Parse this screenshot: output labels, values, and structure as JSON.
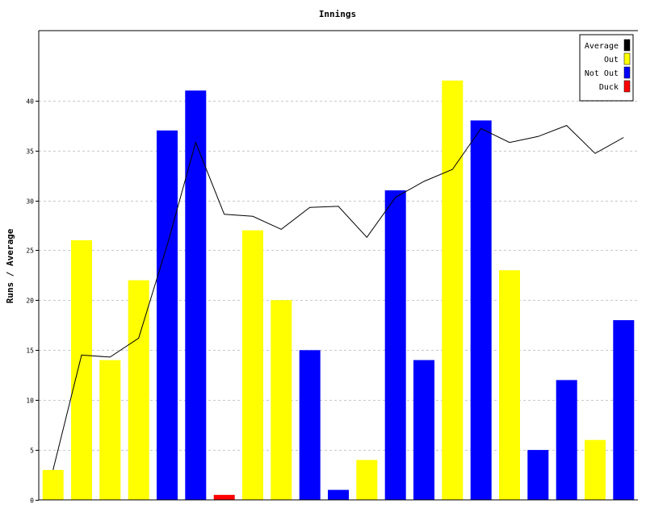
{
  "chart_data": {
    "type": "bar",
    "title": "Innings",
    "xlabel": "",
    "ylabel": "Runs / Average",
    "ylim": [
      0,
      47
    ],
    "yticks": [
      0,
      5,
      10,
      15,
      20,
      25,
      30,
      35,
      40
    ],
    "grid": true,
    "legend_position": "top-right",
    "legend": [
      {
        "label": "Average",
        "color": "#000000"
      },
      {
        "label": "Out",
        "color": "#ffff00"
      },
      {
        "label": "Not Out",
        "color": "#0000ff"
      },
      {
        "label": "Duck",
        "color": "#ff0000"
      }
    ],
    "bars": [
      {
        "value": 3,
        "status": "Out"
      },
      {
        "value": 26,
        "status": "Out"
      },
      {
        "value": 14,
        "status": "Out"
      },
      {
        "value": 22,
        "status": "Out"
      },
      {
        "value": 37,
        "status": "Not Out"
      },
      {
        "value": 41,
        "status": "Not Out"
      },
      {
        "value": 0.5,
        "status": "Duck"
      },
      {
        "value": 27,
        "status": "Out"
      },
      {
        "value": 20,
        "status": "Out"
      },
      {
        "value": 15,
        "status": "Not Out"
      },
      {
        "value": 1,
        "status": "Not Out"
      },
      {
        "value": 4,
        "status": "Out"
      },
      {
        "value": 31,
        "status": "Not Out"
      },
      {
        "value": 14,
        "status": "Not Out"
      },
      {
        "value": 42,
        "status": "Out"
      },
      {
        "value": 38,
        "status": "Not Out"
      },
      {
        "value": 23,
        "status": "Out"
      },
      {
        "value": 5,
        "status": "Not Out"
      },
      {
        "value": 12,
        "status": "Not Out"
      },
      {
        "value": 6,
        "status": "Out"
      },
      {
        "value": 18,
        "status": "Not Out"
      }
    ],
    "average_line": [
      3,
      14.5,
      14.3,
      16.2,
      25.5,
      35.8,
      28.6,
      28.4,
      27.1,
      29.3,
      29.4,
      26.3,
      30.3,
      31.9,
      33.1,
      37.2,
      35.8,
      36.4,
      37.5,
      34.7,
      36.3
    ]
  }
}
